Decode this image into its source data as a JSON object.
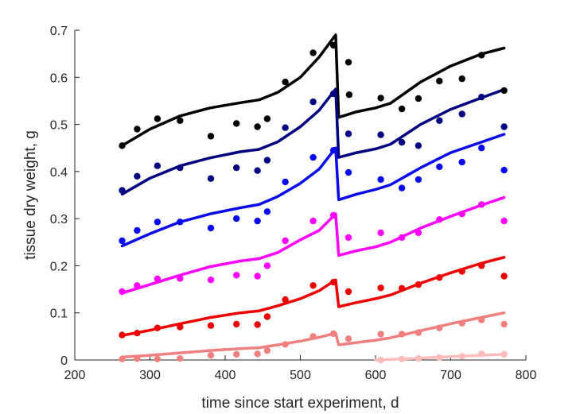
{
  "chart_data": {
    "type": "scatter",
    "xlabel": "time since start experiment, d",
    "ylabel": "tissue dry weight, g",
    "xlim": [
      200,
      800
    ],
    "ylim": [
      0,
      0.7
    ],
    "xticks": [
      200,
      300,
      400,
      500,
      600,
      700,
      800
    ],
    "yticks": [
      0,
      0.1,
      0.2,
      0.3,
      0.4,
      0.5,
      0.6,
      0.7
    ],
    "ytick_labels": [
      "0",
      "0.1",
      "0.2",
      "0.3",
      "0.4",
      "0.5",
      "0.6",
      "0.7"
    ],
    "grid": false,
    "box": false,
    "series": [
      {
        "color": "#000000",
        "points": [
          [
            263,
            0.455
          ],
          [
            283,
            0.49
          ],
          [
            310,
            0.512
          ],
          [
            340,
            0.508
          ],
          [
            381,
            0.475
          ],
          [
            415,
            0.502
          ],
          [
            443,
            0.495
          ],
          [
            456,
            0.512
          ],
          [
            480,
            0.59
          ],
          [
            517,
            0.652
          ],
          [
            544,
            0.668
          ],
          [
            564,
            0.632
          ],
          [
            565,
            0.563
          ],
          [
            607,
            0.556
          ],
          [
            635,
            0.533
          ],
          [
            657,
            0.555
          ],
          [
            685,
            0.592
          ],
          [
            715,
            0.597
          ],
          [
            741,
            0.647
          ],
          [
            771,
            0.572
          ]
        ],
        "curve": [
          [
            263,
            0.455
          ],
          [
            300,
            0.49
          ],
          [
            340,
            0.518
          ],
          [
            380,
            0.535
          ],
          [
            420,
            0.546
          ],
          [
            445,
            0.552
          ],
          [
            470,
            0.568
          ],
          [
            500,
            0.6
          ],
          [
            525,
            0.643
          ],
          [
            547,
            0.69
          ],
          [
            551,
            0.515
          ],
          [
            575,
            0.527
          ],
          [
            600,
            0.535
          ],
          [
            620,
            0.545
          ],
          [
            660,
            0.59
          ],
          [
            700,
            0.624
          ],
          [
            740,
            0.649
          ],
          [
            771,
            0.662
          ]
        ]
      },
      {
        "color": "#000080",
        "points": [
          [
            263,
            0.36
          ],
          [
            283,
            0.39
          ],
          [
            310,
            0.412
          ],
          [
            340,
            0.408
          ],
          [
            381,
            0.385
          ],
          [
            415,
            0.408
          ],
          [
            443,
            0.402
          ],
          [
            456,
            0.424
          ],
          [
            480,
            0.493
          ],
          [
            517,
            0.548
          ],
          [
            544,
            0.565
          ],
          [
            564,
            0.48
          ],
          [
            607,
            0.478
          ],
          [
            635,
            0.462
          ],
          [
            657,
            0.455
          ],
          [
            685,
            0.508
          ],
          [
            715,
            0.522
          ],
          [
            741,
            0.558
          ],
          [
            771,
            0.495
          ]
        ],
        "curve": [
          [
            263,
            0.352
          ],
          [
            300,
            0.386
          ],
          [
            340,
            0.412
          ],
          [
            380,
            0.429
          ],
          [
            420,
            0.442
          ],
          [
            445,
            0.447
          ],
          [
            470,
            0.463
          ],
          [
            500,
            0.495
          ],
          [
            525,
            0.53
          ],
          [
            547,
            0.575
          ],
          [
            551,
            0.43
          ],
          [
            575,
            0.44
          ],
          [
            600,
            0.448
          ],
          [
            620,
            0.458
          ],
          [
            660,
            0.5
          ],
          [
            700,
            0.532
          ],
          [
            740,
            0.556
          ],
          [
            771,
            0.574
          ]
        ]
      },
      {
        "color": "#0a0aee",
        "points": [
          [
            263,
            0.253
          ],
          [
            283,
            0.275
          ],
          [
            310,
            0.293
          ],
          [
            340,
            0.293
          ],
          [
            381,
            0.28
          ],
          [
            415,
            0.3
          ],
          [
            443,
            0.295
          ],
          [
            456,
            0.315
          ],
          [
            480,
            0.378
          ],
          [
            517,
            0.43
          ],
          [
            544,
            0.445
          ],
          [
            564,
            0.398
          ],
          [
            607,
            0.383
          ],
          [
            635,
            0.365
          ],
          [
            657,
            0.383
          ],
          [
            685,
            0.41
          ],
          [
            715,
            0.42
          ],
          [
            741,
            0.45
          ],
          [
            771,
            0.403
          ]
        ],
        "curve": [
          [
            263,
            0.242
          ],
          [
            300,
            0.268
          ],
          [
            340,
            0.293
          ],
          [
            380,
            0.31
          ],
          [
            420,
            0.323
          ],
          [
            445,
            0.33
          ],
          [
            470,
            0.347
          ],
          [
            500,
            0.375
          ],
          [
            525,
            0.405
          ],
          [
            547,
            0.45
          ],
          [
            551,
            0.34
          ],
          [
            575,
            0.352
          ],
          [
            600,
            0.362
          ],
          [
            620,
            0.372
          ],
          [
            660,
            0.408
          ],
          [
            700,
            0.44
          ],
          [
            740,
            0.462
          ],
          [
            771,
            0.479
          ]
        ]
      },
      {
        "color": "#ff00ff",
        "points": [
          [
            263,
            0.145
          ],
          [
            283,
            0.158
          ],
          [
            310,
            0.172
          ],
          [
            340,
            0.173
          ],
          [
            381,
            0.17
          ],
          [
            415,
            0.18
          ],
          [
            443,
            0.178
          ],
          [
            456,
            0.2
          ],
          [
            480,
            0.253
          ],
          [
            517,
            0.295
          ],
          [
            544,
            0.307
          ],
          [
            564,
            0.26
          ],
          [
            607,
            0.27
          ],
          [
            635,
            0.26
          ],
          [
            657,
            0.27
          ],
          [
            685,
            0.298
          ],
          [
            715,
            0.31
          ],
          [
            741,
            0.33
          ],
          [
            771,
            0.295
          ]
        ],
        "curve": [
          [
            263,
            0.142
          ],
          [
            300,
            0.16
          ],
          [
            340,
            0.18
          ],
          [
            380,
            0.198
          ],
          [
            420,
            0.21
          ],
          [
            445,
            0.215
          ],
          [
            470,
            0.228
          ],
          [
            500,
            0.255
          ],
          [
            525,
            0.275
          ],
          [
            547,
            0.31
          ],
          [
            551,
            0.222
          ],
          [
            575,
            0.232
          ],
          [
            600,
            0.24
          ],
          [
            620,
            0.25
          ],
          [
            660,
            0.28
          ],
          [
            700,
            0.305
          ],
          [
            740,
            0.328
          ],
          [
            771,
            0.345
          ]
        ]
      },
      {
        "color": "#ee0000",
        "points": [
          [
            263,
            0.053
          ],
          [
            283,
            0.057
          ],
          [
            310,
            0.068
          ],
          [
            340,
            0.07
          ],
          [
            381,
            0.073
          ],
          [
            415,
            0.076
          ],
          [
            443,
            0.075
          ],
          [
            456,
            0.092
          ],
          [
            480,
            0.128
          ],
          [
            517,
            0.158
          ],
          [
            544,
            0.165
          ],
          [
            564,
            0.145
          ],
          [
            607,
            0.153
          ],
          [
            635,
            0.152
          ],
          [
            657,
            0.16
          ],
          [
            685,
            0.175
          ],
          [
            715,
            0.188
          ],
          [
            741,
            0.2
          ],
          [
            771,
            0.178
          ]
        ],
        "curve": [
          [
            263,
            0.052
          ],
          [
            300,
            0.063
          ],
          [
            340,
            0.077
          ],
          [
            380,
            0.09
          ],
          [
            420,
            0.1
          ],
          [
            445,
            0.104
          ],
          [
            470,
            0.115
          ],
          [
            500,
            0.13
          ],
          [
            525,
            0.147
          ],
          [
            547,
            0.17
          ],
          [
            551,
            0.113
          ],
          [
            575,
            0.122
          ],
          [
            600,
            0.13
          ],
          [
            620,
            0.138
          ],
          [
            660,
            0.163
          ],
          [
            700,
            0.185
          ],
          [
            740,
            0.205
          ],
          [
            771,
            0.218
          ]
        ]
      },
      {
        "color": "#f08080",
        "points": [
          [
            263,
            0.002
          ],
          [
            283,
            0.003
          ],
          [
            310,
            0.002
          ],
          [
            340,
            0.003
          ],
          [
            381,
            0.01
          ],
          [
            415,
            0.012
          ],
          [
            443,
            0.013
          ],
          [
            456,
            0.02
          ],
          [
            480,
            0.033
          ],
          [
            517,
            0.05
          ],
          [
            544,
            0.056
          ],
          [
            564,
            0.045
          ],
          [
            607,
            0.055
          ],
          [
            635,
            0.055
          ],
          [
            657,
            0.058
          ],
          [
            685,
            0.068
          ],
          [
            715,
            0.078
          ],
          [
            741,
            0.085
          ],
          [
            771,
            0.076
          ]
        ],
        "curve": [
          [
            263,
            0.006
          ],
          [
            300,
            0.01
          ],
          [
            340,
            0.015
          ],
          [
            380,
            0.02
          ],
          [
            420,
            0.024
          ],
          [
            445,
            0.026
          ],
          [
            470,
            0.032
          ],
          [
            500,
            0.04
          ],
          [
            525,
            0.048
          ],
          [
            547,
            0.057
          ],
          [
            551,
            0.032
          ],
          [
            575,
            0.037
          ],
          [
            600,
            0.042
          ],
          [
            620,
            0.047
          ],
          [
            660,
            0.062
          ],
          [
            700,
            0.077
          ],
          [
            740,
            0.09
          ],
          [
            771,
            0.1
          ]
        ]
      },
      {
        "color": "#ffbcbc",
        "points": [
          [
            607,
            0.0
          ],
          [
            635,
            0.002
          ],
          [
            657,
            0.003
          ],
          [
            685,
            0.005
          ],
          [
            715,
            0.008
          ],
          [
            741,
            0.013
          ],
          [
            771,
            0.012
          ]
        ],
        "curve": [
          [
            600,
            0.0
          ],
          [
            620,
            0.001
          ],
          [
            660,
            0.004
          ],
          [
            700,
            0.007
          ],
          [
            740,
            0.01
          ],
          [
            771,
            0.012
          ]
        ]
      }
    ]
  }
}
